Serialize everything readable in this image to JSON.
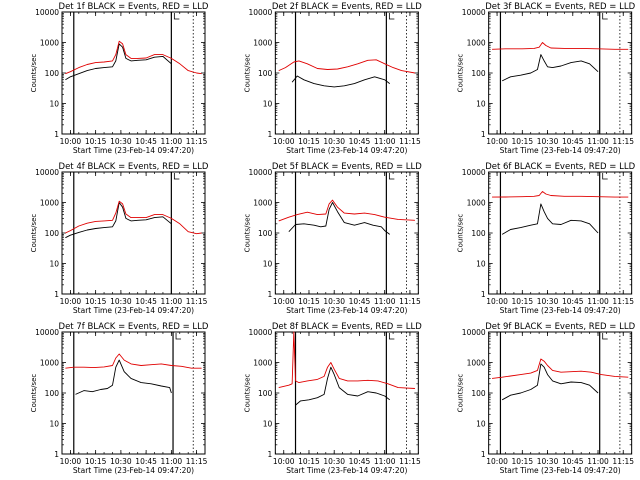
{
  "page": {
    "colors": {
      "background": "#ffffff",
      "axes": "#000000",
      "events": "#000000",
      "lld": "#e00000"
    }
  },
  "chart_data": [
    {
      "type": "line",
      "title": "Det 1f BLACK = Events, RED = LLD",
      "xlabel": "Start Time (23-Feb-14 09:47:20)",
      "ylabel": "Counts/sec",
      "yscale": "log",
      "ylim": [
        1,
        10000
      ],
      "y_ticks": [
        "1",
        "10",
        "100",
        "1000",
        "10000"
      ],
      "x_ticks": [
        "10:00",
        "10:15",
        "10:30",
        "10:45",
        "11:00",
        "11:15"
      ],
      "series": [
        {
          "name": "BLACK = Events",
          "color": "#000000",
          "x": [
            "09:57",
            "10:00",
            "10:05",
            "10:10",
            "10:15",
            "10:20",
            "10:25",
            "10:27",
            "10:29",
            "10:31",
            "10:33",
            "10:36",
            "10:40",
            "10:45",
            "10:50",
            "10:55",
            "11:00"
          ],
          "y": [
            60,
            75,
            95,
            120,
            140,
            150,
            160,
            250,
            900,
            700,
            300,
            250,
            260,
            270,
            330,
            350,
            200
          ]
        },
        {
          "name": "RED = LLD",
          "color": "#e00000",
          "x": [
            "09:57",
            "10:00",
            "10:05",
            "10:10",
            "10:15",
            "10:20",
            "10:25",
            "10:27",
            "10:29",
            "10:31",
            "10:33",
            "10:36",
            "10:40",
            "10:45",
            "10:50",
            "10:55",
            "11:00",
            "11:05",
            "11:10",
            "11:15",
            "11:18"
          ],
          "y": [
            95,
            110,
            150,
            190,
            220,
            230,
            250,
            400,
            1100,
            900,
            400,
            300,
            300,
            310,
            400,
            400,
            300,
            200,
            120,
            100,
            95
          ]
        }
      ],
      "vlines_solid": [
        "10:02",
        "11:00"
      ],
      "vlines_dotted": [
        "11:13"
      ]
    },
    {
      "type": "line",
      "title": "Det 2f BLACK = Events, RED = LLD",
      "xlabel": "Start Time (23-Feb-14 09:47:20)",
      "ylabel": "Counts/sec",
      "yscale": "log",
      "ylim": [
        1,
        10000
      ],
      "y_ticks": [
        "1",
        "10",
        "100",
        "1000",
        "10000"
      ],
      "x_ticks": [
        "10:00",
        "10:15",
        "10:30",
        "10:45",
        "11:00",
        "11:15"
      ],
      "series": [
        {
          "name": "BLACK = Events",
          "color": "#000000",
          "x": [
            "10:05",
            "10:08",
            "10:12",
            "10:18",
            "10:24",
            "10:30",
            "10:36",
            "10:42",
            "10:48",
            "10:54",
            "11:00",
            "11:03"
          ],
          "y": [
            50,
            80,
            60,
            45,
            38,
            35,
            38,
            45,
            60,
            75,
            60,
            45
          ]
        },
        {
          "name": "RED = LLD",
          "color": "#e00000",
          "x": [
            "09:57",
            "10:01",
            "10:06",
            "10:09",
            "10:14",
            "10:20",
            "10:26",
            "10:32",
            "10:38",
            "10:44",
            "10:50",
            "10:55",
            "11:00",
            "11:05",
            "11:10",
            "11:18"
          ],
          "y": [
            120,
            150,
            230,
            250,
            200,
            140,
            130,
            135,
            160,
            200,
            260,
            270,
            200,
            150,
            120,
            100
          ]
        }
      ],
      "vlines_solid": [
        "10:07",
        "11:01"
      ],
      "vlines_dotted": [
        "11:13"
      ]
    },
    {
      "type": "line",
      "title": "Det 3f BLACK = Events, RED = LLD",
      "xlabel": "Start Time (23-Feb-14 09:47:20)",
      "ylabel": "Counts/sec",
      "yscale": "log",
      "ylim": [
        1,
        10000
      ],
      "y_ticks": [
        "1",
        "10",
        "100",
        "1000",
        "10000"
      ],
      "x_ticks": [
        "10:00",
        "10:15",
        "10:30",
        "10:45",
        "11:00",
        "11:15"
      ],
      "series": [
        {
          "name": "BLACK = Events",
          "color": "#000000",
          "x": [
            "10:03",
            "10:08",
            "10:14",
            "10:20",
            "10:24",
            "10:26",
            "10:28",
            "10:30",
            "10:33",
            "10:38",
            "10:44",
            "10:50",
            "10:55",
            "11:00"
          ],
          "y": [
            55,
            75,
            85,
            100,
            130,
            400,
            250,
            160,
            150,
            170,
            220,
            250,
            200,
            110
          ]
        },
        {
          "name": "RED = LLD",
          "color": "#e00000",
          "x": [
            "09:57",
            "10:05",
            "10:15",
            "10:22",
            "10:25",
            "10:27",
            "10:29",
            "10:32",
            "10:40",
            "10:50",
            "11:00",
            "11:10",
            "11:18"
          ],
          "y": [
            600,
            620,
            620,
            640,
            700,
            1000,
            800,
            660,
            640,
            640,
            620,
            600,
            600
          ]
        }
      ],
      "vlines_solid": [
        "10:02",
        "11:01"
      ],
      "vlines_dotted": [
        "11:13"
      ]
    },
    {
      "type": "line",
      "title": "Det 4f BLACK = Events, RED = LLD",
      "xlabel": "Start Time (23-Feb-14 09:47:20)",
      "ylabel": "Counts/sec",
      "yscale": "log",
      "ylim": [
        1,
        10000
      ],
      "y_ticks": [
        "1",
        "10",
        "100",
        "1000",
        "10000"
      ],
      "x_ticks": [
        "10:00",
        "10:15",
        "10:30",
        "10:45",
        "11:00",
        "11:15"
      ],
      "series": [
        {
          "name": "BLACK = Events",
          "color": "#000000",
          "x": [
            "09:57",
            "10:00",
            "10:05",
            "10:10",
            "10:15",
            "10:20",
            "10:25",
            "10:27",
            "10:29",
            "10:31",
            "10:33",
            "10:36",
            "10:40",
            "10:45",
            "10:50",
            "10:55",
            "11:00"
          ],
          "y": [
            70,
            85,
            105,
            125,
            140,
            150,
            160,
            250,
            1000,
            700,
            300,
            250,
            260,
            270,
            320,
            340,
            200
          ]
        },
        {
          "name": "RED = LLD",
          "color": "#e00000",
          "x": [
            "09:57",
            "10:00",
            "10:05",
            "10:10",
            "10:15",
            "10:20",
            "10:25",
            "10:27",
            "10:29",
            "10:31",
            "10:33",
            "10:36",
            "10:40",
            "10:45",
            "10:50",
            "10:55",
            "11:00",
            "11:05",
            "11:10",
            "11:15",
            "11:18"
          ],
          "y": [
            100,
            120,
            170,
            210,
            240,
            250,
            260,
            450,
            1100,
            900,
            420,
            320,
            320,
            320,
            400,
            400,
            300,
            200,
            110,
            95,
            100
          ]
        }
      ],
      "vlines_solid": [
        "10:02",
        "11:00"
      ],
      "vlines_dotted": [
        "11:13"
      ]
    },
    {
      "type": "line",
      "title": "Det 5f BLACK = Events, RED = LLD",
      "xlabel": "Start Time (23-Feb-14 09:47:20)",
      "ylabel": "Counts/sec",
      "yscale": "log",
      "ylim": [
        1,
        10000
      ],
      "y_ticks": [
        "1",
        "10",
        "100",
        "1000",
        "10000"
      ],
      "x_ticks": [
        "10:00",
        "10:15",
        "10:30",
        "10:45",
        "11:00",
        "11:15"
      ],
      "series": [
        {
          "name": "BLACK = Events",
          "color": "#000000",
          "x": [
            "10:03",
            "10:07",
            "10:12",
            "10:18",
            "10:22",
            "10:25",
            "10:27",
            "10:29",
            "10:32",
            "10:36",
            "10:42",
            "10:48",
            "10:53",
            "10:58",
            "11:00",
            "11:03"
          ],
          "y": [
            110,
            190,
            200,
            180,
            160,
            170,
            600,
            1000,
            500,
            220,
            180,
            220,
            180,
            160,
            120,
            90
          ]
        },
        {
          "name": "RED = LLD",
          "color": "#e00000",
          "x": [
            "09:57",
            "10:03",
            "10:08",
            "10:14",
            "10:20",
            "10:25",
            "10:27",
            "10:29",
            "10:32",
            "10:36",
            "10:42",
            "10:48",
            "10:54",
            "11:00",
            "11:08",
            "11:18"
          ],
          "y": [
            250,
            330,
            400,
            480,
            400,
            420,
            900,
            1200,
            700,
            450,
            420,
            450,
            400,
            330,
            280,
            260
          ]
        }
      ],
      "vlines_solid": [
        "10:07",
        "11:01"
      ],
      "vlines_dotted": [
        "11:13"
      ]
    },
    {
      "type": "line",
      "title": "Det 6f BLACK = Events, RED = LLD",
      "xlabel": "Start Time (23-Feb-14 09:47:20)",
      "ylabel": "Counts/sec",
      "yscale": "log",
      "ylim": [
        1,
        10000
      ],
      "y_ticks": [
        "1",
        "10",
        "100",
        "1000",
        "10000"
      ],
      "x_ticks": [
        "10:00",
        "10:15",
        "10:30",
        "10:45",
        "11:00",
        "11:15"
      ],
      "series": [
        {
          "name": "BLACK = Events",
          "color": "#000000",
          "x": [
            "10:03",
            "10:08",
            "10:14",
            "10:20",
            "10:24",
            "10:26",
            "10:28",
            "10:30",
            "10:33",
            "10:38",
            "10:44",
            "10:50",
            "10:55",
            "11:00"
          ],
          "y": [
            90,
            130,
            150,
            180,
            200,
            900,
            500,
            300,
            200,
            190,
            260,
            250,
            200,
            100
          ]
        },
        {
          "name": "RED = LLD",
          "color": "#e00000",
          "x": [
            "09:57",
            "10:05",
            "10:15",
            "10:22",
            "10:25",
            "10:27",
            "10:29",
            "10:32",
            "10:40",
            "10:50",
            "11:00",
            "11:10",
            "11:18"
          ],
          "y": [
            1500,
            1520,
            1550,
            1600,
            1700,
            2300,
            1900,
            1700,
            1600,
            1600,
            1550,
            1500,
            1500
          ]
        }
      ],
      "vlines_solid": [
        "10:02",
        "11:01"
      ],
      "vlines_dotted": [
        "11:13"
      ]
    },
    {
      "type": "line",
      "title": "Det 7f BLACK = Events, RED = LLD",
      "xlabel": "Start Time (23-Feb-14 09:47:20)",
      "ylabel": "Counts/sec",
      "yscale": "log",
      "ylim": [
        1,
        10000
      ],
      "y_ticks": [
        "1",
        "10",
        "100",
        "1000",
        "10000"
      ],
      "x_ticks": [
        "10:00",
        "10:15",
        "10:30",
        "10:45",
        "11:00",
        "11:15"
      ],
      "series": [
        {
          "name": "BLACK = Events",
          "color": "#000000",
          "x": [
            "10:03",
            "10:08",
            "10:13",
            "10:18",
            "10:22",
            "10:25",
            "10:27",
            "10:29",
            "10:32",
            "10:36",
            "10:42",
            "10:48",
            "10:54",
            "10:59",
            "11:00"
          ],
          "y": [
            90,
            120,
            110,
            130,
            140,
            180,
            700,
            1200,
            500,
            300,
            220,
            200,
            170,
            150,
            100
          ]
        },
        {
          "name": "RED = LLD",
          "color": "#e00000",
          "x": [
            "09:57",
            "10:02",
            "10:08",
            "10:14",
            "10:20",
            "10:25",
            "10:27",
            "10:29",
            "10:32",
            "10:36",
            "10:42",
            "10:48",
            "10:54",
            "11:00",
            "11:06",
            "11:12",
            "11:18"
          ],
          "y": [
            650,
            700,
            700,
            680,
            720,
            800,
            1400,
            1900,
            1200,
            900,
            800,
            850,
            900,
            800,
            750,
            650,
            650
          ]
        }
      ],
      "vlines_solid": [
        "10:02",
        "11:01"
      ],
      "vlines_dotted": [
        "11:13"
      ]
    },
    {
      "type": "line",
      "title": "Det 8f BLACK = Events, RED = LLD",
      "xlabel": "Start Time (23-Feb-14 09:47:20)",
      "ylabel": "Counts/sec",
      "yscale": "log",
      "ylim": [
        1,
        10000
      ],
      "y_ticks": [
        "1",
        "10",
        "100",
        "1000",
        "10000"
      ],
      "x_ticks": [
        "10:00",
        "10:15",
        "10:30",
        "10:45",
        "11:00",
        "11:15"
      ],
      "series": [
        {
          "name": "BLACK = Events",
          "color": "#000000",
          "x": [
            "10:07",
            "10:10",
            "10:15",
            "10:20",
            "10:24",
            "10:26",
            "10:28",
            "10:30",
            "10:33",
            "10:38",
            "10:44",
            "10:50",
            "10:55",
            "11:00",
            "11:03"
          ],
          "y": [
            40,
            55,
            60,
            70,
            90,
            300,
            700,
            400,
            150,
            90,
            80,
            110,
            100,
            80,
            60
          ]
        },
        {
          "name": "RED = LLD",
          "color": "#e00000",
          "x": [
            "09:57",
            "10:03",
            "10:05",
            "10:06",
            "10:07",
            "10:09",
            "10:14",
            "10:20",
            "10:24",
            "10:26",
            "10:28",
            "10:30",
            "10:33",
            "10:38",
            "10:44",
            "10:50",
            "10:56",
            "11:02",
            "11:08",
            "11:18"
          ],
          "y": [
            150,
            180,
            200,
            10000,
            250,
            220,
            250,
            280,
            350,
            700,
            1000,
            600,
            300,
            250,
            250,
            260,
            250,
            200,
            150,
            140
          ]
        }
      ],
      "vlines_solid": [
        "10:07",
        "11:01"
      ],
      "vlines_dotted": [
        "11:13"
      ]
    },
    {
      "type": "line",
      "title": "Det 9f BLACK = Events, RED = LLD",
      "xlabel": "Start Time (23-Feb-14 09:47:20)",
      "ylabel": "Counts/sec",
      "yscale": "log",
      "ylim": [
        1,
        10000
      ],
      "y_ticks": [
        "1",
        "10",
        "100",
        "1000",
        "10000"
      ],
      "x_ticks": [
        "10:00",
        "10:15",
        "10:30",
        "10:45",
        "11:00",
        "11:15"
      ],
      "series": [
        {
          "name": "BLACK = Events",
          "color": "#000000",
          "x": [
            "10:03",
            "10:08",
            "10:14",
            "10:20",
            "10:24",
            "10:26",
            "10:28",
            "10:30",
            "10:33",
            "10:38",
            "10:44",
            "10:50",
            "10:55",
            "11:00"
          ],
          "y": [
            60,
            85,
            100,
            130,
            180,
            900,
            700,
            400,
            250,
            200,
            230,
            220,
            180,
            100
          ]
        },
        {
          "name": "RED = LLD",
          "color": "#e00000",
          "x": [
            "09:57",
            "10:03",
            "10:08",
            "10:14",
            "10:20",
            "10:24",
            "10:26",
            "10:28",
            "10:30",
            "10:33",
            "10:38",
            "10:44",
            "10:50",
            "10:56",
            "11:02",
            "11:10",
            "11:18"
          ],
          "y": [
            300,
            330,
            360,
            400,
            450,
            550,
            1300,
            1100,
            800,
            550,
            480,
            500,
            520,
            480,
            400,
            350,
            330
          ]
        }
      ],
      "vlines_solid": [
        "10:02",
        "11:01"
      ],
      "vlines_dotted": [
        "11:13"
      ]
    }
  ]
}
